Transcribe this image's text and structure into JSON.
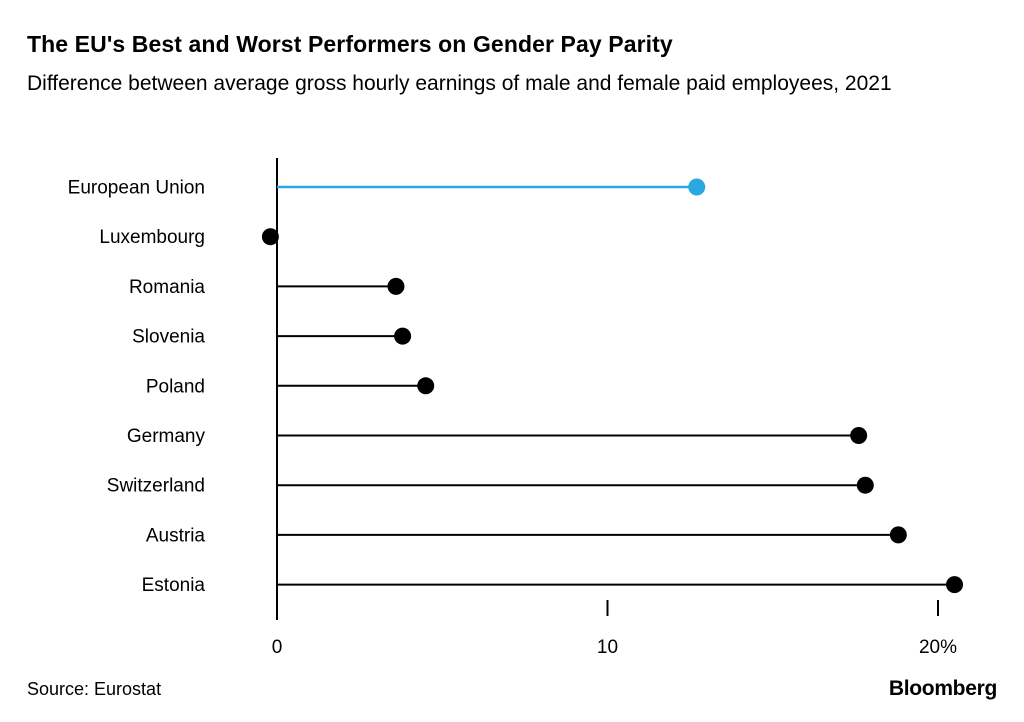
{
  "header": {
    "title": "The EU's Best and Worst Performers on Gender Pay Parity",
    "subtitle": "Difference between average gross hourly earnings of male and female paid employees, 2021"
  },
  "footer": {
    "source": "Source: Eurostat",
    "brand": "Bloomberg"
  },
  "chart_data": {
    "type": "lollipop",
    "title": "The EU's Best and Worst Performers on Gender Pay Parity",
    "subtitle": "Difference between average gross hourly earnings of male and female paid employees, 2021",
    "categories": [
      "European Union",
      "Luxembourg",
      "Romania",
      "Slovenia",
      "Poland",
      "Germany",
      "Switzerland",
      "Austria",
      "Estonia"
    ],
    "values": [
      12.7,
      -0.2,
      3.6,
      3.8,
      4.5,
      17.6,
      17.8,
      18.8,
      20.5
    ],
    "unit": "%",
    "highlight_index": 0,
    "highlight_color": "#29A8E2",
    "default_color": "#000000",
    "xlim": [
      0,
      20
    ],
    "x_ticks": [
      0,
      10,
      20
    ],
    "x_tick_labels": [
      "0",
      "10",
      "20%"
    ],
    "grid": false,
    "legend": "none",
    "source": "Source: Eurostat",
    "brand": "Bloomberg"
  }
}
